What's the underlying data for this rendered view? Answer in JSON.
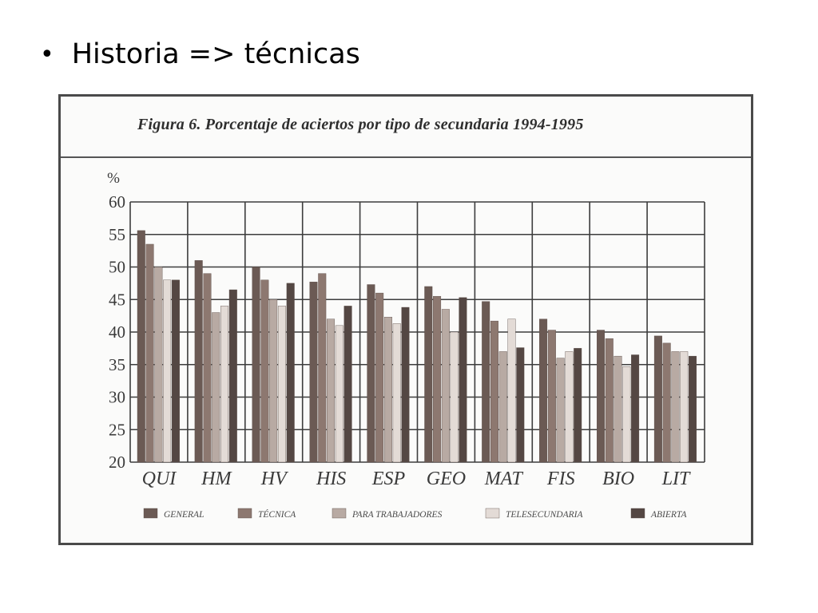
{
  "slide": {
    "bullet": "•",
    "text": "Historia => técnicas"
  },
  "chart_data": {
    "type": "bar",
    "title": "Figura 6. Porcentaje de aciertos por tipo de secundaria 1994-1995",
    "ylabel": "%",
    "xlabel": "",
    "ylim": [
      20,
      60
    ],
    "yticks": [
      20,
      25,
      30,
      35,
      40,
      45,
      50,
      55,
      60
    ],
    "grid": true,
    "legend_position": "bottom",
    "categories": [
      "QUI",
      "HM",
      "HV",
      "HIS",
      "ESP",
      "GEO",
      "MAT",
      "FIS",
      "BIO",
      "LIT"
    ],
    "series": [
      {
        "name": "GENERAL",
        "color": "#6b5a54",
        "values": [
          55.6,
          51.0,
          50.0,
          47.7,
          47.3,
          47.0,
          44.7,
          42.0,
          40.3,
          39.4
        ]
      },
      {
        "name": "TÉCNICA",
        "color": "#8d7870",
        "values": [
          53.5,
          49.0,
          48.0,
          49.0,
          46.0,
          45.5,
          41.7,
          40.3,
          39.0,
          38.3
        ]
      },
      {
        "name": "PARA TRABAJADORES",
        "color": "#b8aaa3",
        "values": [
          50.0,
          43.0,
          45.0,
          42.0,
          42.3,
          43.5,
          37.0,
          36.0,
          36.3,
          37.0
        ]
      },
      {
        "name": "TELESECUNDARIA",
        "color": "#e3dbd6",
        "values": [
          48.0,
          44.0,
          44.0,
          41.0,
          41.3,
          40.0,
          42.0,
          37.0,
          34.7,
          37.0
        ]
      },
      {
        "name": "ABIERTA",
        "color": "#544743",
        "values": [
          48.0,
          46.5,
          47.5,
          44.0,
          43.8,
          45.3,
          37.6,
          37.5,
          36.5,
          36.3
        ]
      }
    ]
  }
}
